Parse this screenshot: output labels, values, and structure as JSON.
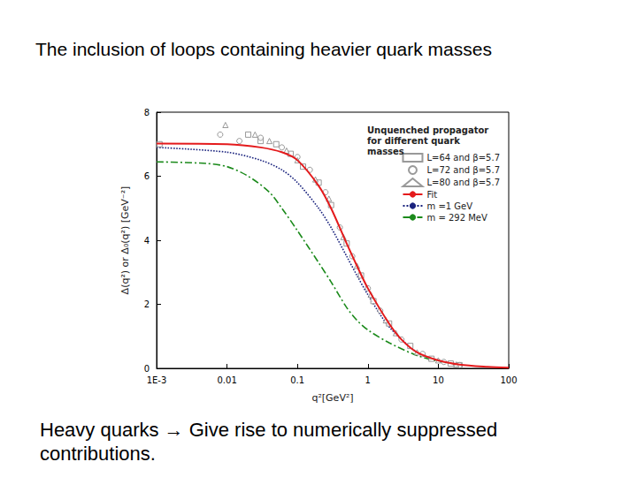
{
  "chart_data": {
    "type": "line",
    "title": "The inclusion of loops containing heavier quark masses",
    "annotations": [
      "Heavy quarks → Give rise to numerically suppressed contributions."
    ],
    "legend_title": "Unquenched propagator for different quark masses",
    "x_label": "q²[GeV²]",
    "y_label": "Δ(q²) or Δ₀(q²) [GeV⁻²]",
    "log": "x",
    "grid": false,
    "legend": "upper right",
    "xlim": [
      0.001,
      100
    ],
    "xticks": [
      {
        "value": 0.001,
        "label": "1E-3"
      },
      0.01,
      0.1,
      1,
      10,
      100
    ],
    "ylim": [
      0,
      8
    ],
    "yticks": [
      0,
      2,
      4,
      6,
      8
    ],
    "series": [
      {
        "name": "L=64 and β=5.7",
        "type": "scatter",
        "marker": "square",
        "color": "#808080",
        "x": [
          0.0011,
          0.02,
          0.03,
          0.05,
          0.08,
          0.12,
          0.2,
          0.3,
          0.5,
          0.8,
          1.2,
          2,
          4,
          8,
          15,
          20
        ],
        "values": [
          7.0,
          7.3,
          7.1,
          7.0,
          6.7,
          6.3,
          5.8,
          5.1,
          3.9,
          2.9,
          2.1,
          1.4,
          0.7,
          0.3,
          0.15,
          0.1
        ]
      },
      {
        "name": "L=72 and β=5.7",
        "type": "scatter",
        "marker": "circle",
        "color": "#808080",
        "x": [
          0.008,
          0.015,
          0.03,
          0.06,
          0.1,
          0.15,
          0.25,
          0.4,
          0.6,
          1,
          1.5,
          3,
          6,
          12,
          20
        ],
        "values": [
          7.3,
          7.1,
          7.2,
          6.9,
          6.6,
          6.2,
          5.5,
          4.4,
          3.5,
          2.5,
          1.8,
          0.9,
          0.45,
          0.2,
          0.1
        ]
      },
      {
        "name": "L=80 and β=5.7",
        "type": "scatter",
        "marker": "triangle",
        "color": "#808080",
        "x": [
          0.0095,
          0.025,
          0.04,
          0.07,
          0.1,
          0.18,
          0.28,
          0.45,
          0.7,
          1.1,
          1.8,
          2.5,
          5,
          10,
          18
        ],
        "values": [
          7.6,
          7.3,
          7.1,
          6.8,
          6.5,
          5.9,
          5.3,
          4.1,
          3.2,
          2.3,
          1.5,
          1.1,
          0.5,
          0.25,
          0.12
        ]
      },
      {
        "name": "Fit",
        "type": "line",
        "line_style": "solid",
        "color": "#e41a1c",
        "x": [
          0.001,
          0.01,
          0.03,
          0.06,
          0.1,
          0.2,
          0.3,
          0.5,
          0.7,
          1,
          2,
          3,
          5,
          10,
          20,
          50,
          100
        ],
        "values": [
          7.02,
          7.0,
          6.9,
          6.75,
          6.5,
          5.7,
          5.0,
          3.9,
          3.2,
          2.5,
          1.4,
          0.9,
          0.5,
          0.25,
          0.12,
          0.05,
          0.02
        ]
      },
      {
        "name": "m =1 GeV",
        "type": "line",
        "line_style": "dotted",
        "color": "#1a237e",
        "x": [
          0.001,
          0.01,
          0.03,
          0.06,
          0.1,
          0.2,
          0.3,
          0.5,
          0.7,
          1,
          2,
          5,
          10,
          20
        ],
        "values": [
          6.9,
          6.75,
          6.5,
          6.2,
          5.8,
          5.0,
          4.4,
          3.5,
          2.9,
          2.3,
          1.3,
          0.5,
          0.25,
          0.12
        ]
      },
      {
        "name": "m = 292 MeV",
        "type": "line",
        "line_style": "dashdot",
        "color": "#1b8a1b",
        "x": [
          0.001,
          0.005,
          0.01,
          0.02,
          0.04,
          0.06,
          0.1,
          0.2,
          0.3,
          0.5,
          0.7,
          1,
          2,
          5,
          10,
          20
        ],
        "values": [
          6.45,
          6.4,
          6.3,
          6.0,
          5.5,
          5.0,
          4.3,
          3.3,
          2.7,
          1.9,
          1.5,
          1.2,
          0.8,
          0.4,
          0.22,
          0.1
        ]
      }
    ]
  }
}
